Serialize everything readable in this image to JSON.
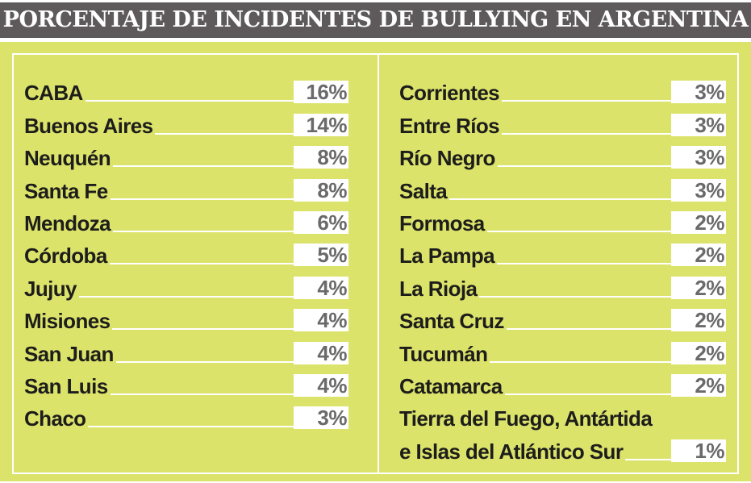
{
  "title": "PORCENTAJE DE INCIDENTES DE BULLYING EN ARGENTINA",
  "chart_data": {
    "type": "table",
    "title": "PORCENTAJE DE INCIDENTES DE BULLYING EN ARGENTINA",
    "left": [
      {
        "label": "CABA",
        "value": "16%"
      },
      {
        "label": "Buenos Aires",
        "value": "14%"
      },
      {
        "label": "Neuquén",
        "value": "8%"
      },
      {
        "label": "Santa Fe",
        "value": "8%"
      },
      {
        "label": "Mendoza",
        "value": "6%"
      },
      {
        "label": "Córdoba",
        "value": "5%"
      },
      {
        "label": "Jujuy",
        "value": "4%"
      },
      {
        "label": "Misiones",
        "value": "4%"
      },
      {
        "label": "San Juan",
        "value": "4%"
      },
      {
        "label": "San Luis",
        "value": "4%"
      },
      {
        "label": "Chaco",
        "value": "3%"
      }
    ],
    "right": [
      {
        "label": "Corrientes",
        "value": "3%"
      },
      {
        "label": "Entre Ríos",
        "value": "3%"
      },
      {
        "label": "Río Negro",
        "value": "3%"
      },
      {
        "label": "Salta",
        "value": "3%"
      },
      {
        "label": "Formosa",
        "value": "2%"
      },
      {
        "label": "La Pampa",
        "value": "2%"
      },
      {
        "label": "La Rioja",
        "value": "2%"
      },
      {
        "label": "Santa Cruz",
        "value": "2%"
      },
      {
        "label": "Tucumán",
        "value": "2%"
      },
      {
        "label": "Catamarca",
        "value": "2%"
      }
    ],
    "last": {
      "label_line1": "Tierra del Fuego, Antártida",
      "label_line2": "e Islas del Atlántico Sur",
      "value": "1%"
    }
  },
  "colors": {
    "title_bg": "#5e5a5c",
    "panel": "#dce36b",
    "value_text": "#6a6a6a"
  }
}
